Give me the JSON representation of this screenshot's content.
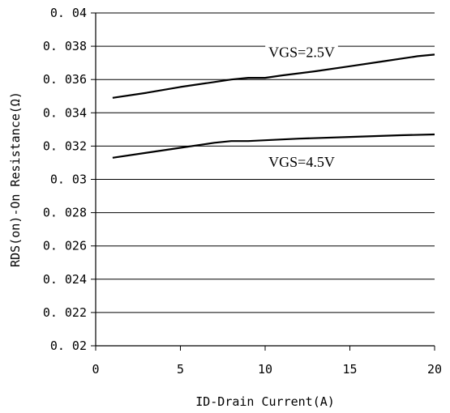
{
  "chart_data": {
    "type": "line",
    "xlabel": "ID-Drain Current(A)",
    "ylabel": "RDS(on)-On Resistance(Ω)",
    "xlim": [
      0,
      20
    ],
    "ylim": [
      0.02,
      0.04
    ],
    "x_ticks": [
      {
        "value": 0,
        "label": "0"
      },
      {
        "value": 5,
        "label": "5"
      },
      {
        "value": 10,
        "label": "10"
      },
      {
        "value": 15,
        "label": "15"
      },
      {
        "value": 20,
        "label": "20"
      }
    ],
    "y_ticks": [
      {
        "value": 0.02,
        "label": "0.02"
      },
      {
        "value": 0.022,
        "label": "0.022"
      },
      {
        "value": 0.024,
        "label": "0.024"
      },
      {
        "value": 0.026,
        "label": "0.026"
      },
      {
        "value": 0.028,
        "label": "0.028"
      },
      {
        "value": 0.03,
        "label": "0.03"
      },
      {
        "value": 0.032,
        "label": "0.032"
      },
      {
        "value": 0.034,
        "label": "0.034"
      },
      {
        "value": 0.036,
        "label": "0.036"
      },
      {
        "value": 0.038,
        "label": "0.038"
      },
      {
        "value": 0.04,
        "label": "0.04"
      }
    ],
    "grid": "horizontal",
    "series": [
      {
        "name": "VGS=2.5V",
        "x": [
          1,
          3,
          5,
          7,
          8,
          9,
          10,
          11,
          13,
          15,
          17,
          19,
          20
        ],
        "y": [
          0.0349,
          0.0352,
          0.03555,
          0.03585,
          0.036,
          0.0361,
          0.0361,
          0.03625,
          0.0365,
          0.0368,
          0.0371,
          0.0374,
          0.0375
        ]
      },
      {
        "name": "VGS=4.5V",
        "x": [
          1,
          3,
          5,
          7,
          8,
          9,
          10,
          12,
          15,
          18,
          20
        ],
        "y": [
          0.0313,
          0.0316,
          0.0319,
          0.0322,
          0.0323,
          0.0323,
          0.03235,
          0.03245,
          0.03255,
          0.03265,
          0.0327
        ]
      }
    ],
    "annotations": [
      {
        "text": "VGS=2.5V",
        "x": 10.2,
        "y": 0.03735
      },
      {
        "text": "VGS=4.5V",
        "x": 10.2,
        "y": 0.03075
      }
    ]
  }
}
